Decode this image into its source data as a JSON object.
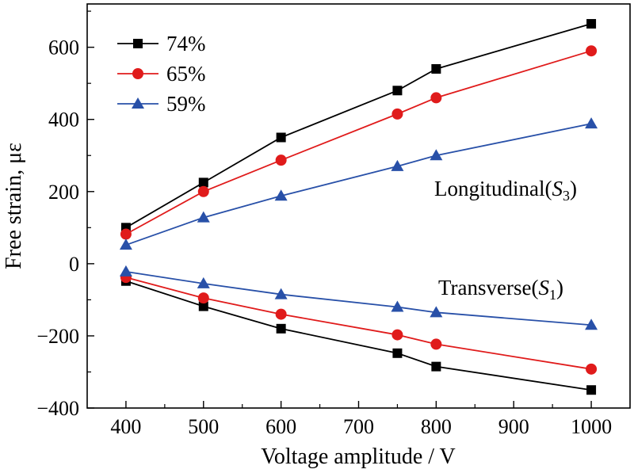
{
  "chart_data": {
    "type": "line",
    "xlabel": "Voltage amplitude / V",
    "ylabel": "Free strain, με",
    "xlim": [
      350,
      1050
    ],
    "ylim": [
      -400,
      720
    ],
    "x_ticks": [
      400,
      500,
      600,
      700,
      800,
      900,
      1000
    ],
    "y_ticks": [
      -400,
      -200,
      0,
      200,
      400,
      600
    ],
    "x_tick_labels": [
      "400",
      "500",
      "600",
      "700",
      "800",
      "900",
      "1000"
    ],
    "y_tick_labels": [
      "−400",
      "−200",
      "0",
      "200",
      "400",
      "600"
    ],
    "grid": false,
    "legend_position": "top-left",
    "series": [
      {
        "name": "74%",
        "color": "#000000",
        "marker": "square",
        "longitudinal": {
          "x": [
            400,
            500,
            600,
            750,
            800,
            1000
          ],
          "y": [
            100,
            225,
            350,
            480,
            540,
            665
          ]
        },
        "transverse": {
          "x": [
            400,
            500,
            600,
            750,
            800,
            1000
          ],
          "y": [
            -48,
            -118,
            -180,
            -248,
            -285,
            -350
          ]
        }
      },
      {
        "name": "65%",
        "color": "#e01b1b",
        "marker": "circle",
        "longitudinal": {
          "x": [
            400,
            500,
            600,
            750,
            800,
            1000
          ],
          "y": [
            82,
            200,
            287,
            415,
            460,
            590
          ]
        },
        "transverse": {
          "x": [
            400,
            500,
            600,
            750,
            800,
            1000
          ],
          "y": [
            -38,
            -95,
            -140,
            -197,
            -223,
            -292
          ]
        }
      },
      {
        "name": "59%",
        "color": "#2850a8",
        "marker": "triangle",
        "longitudinal": {
          "x": [
            400,
            500,
            600,
            750,
            800,
            1000
          ],
          "y": [
            52,
            128,
            188,
            270,
            300,
            388
          ]
        },
        "transverse": {
          "x": [
            400,
            500,
            600,
            750,
            800,
            1000
          ],
          "y": [
            -22,
            -55,
            -85,
            -120,
            -135,
            -170
          ]
        }
      }
    ],
    "annotations": {
      "longitudinal": {
        "text": "Longitudinal(",
        "var": "S",
        "sub": "3",
        "close": ")"
      },
      "transverse": {
        "text": "Transverse(",
        "var": "S",
        "sub": "1",
        "close": ")"
      }
    }
  }
}
